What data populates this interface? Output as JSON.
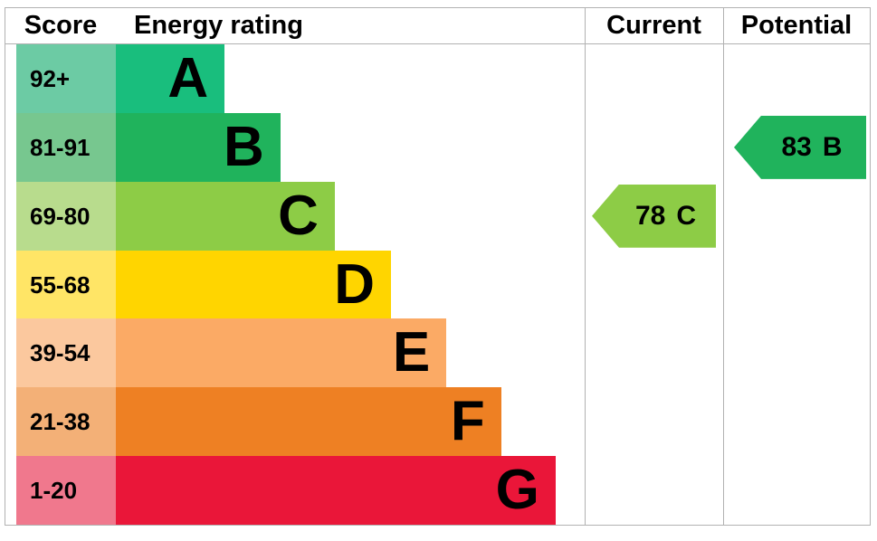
{
  "header": {
    "score": "Score",
    "energy_rating": "Energy rating",
    "current": "Current",
    "potential": "Potential"
  },
  "chart_data": {
    "type": "bar",
    "title": "EPC energy efficiency rating chart",
    "bands": [
      {
        "letter": "A",
        "score": "92+",
        "color": "#19BE7D",
        "tint": "#6CCBA4",
        "width_pct": 23.2
      },
      {
        "letter": "B",
        "score": "81-91",
        "color": "#20B35C",
        "tint": "#77C78F",
        "width_pct": 35.1
      },
      {
        "letter": "C",
        "score": "69-80",
        "color": "#8DCC46",
        "tint": "#B8DC8D",
        "width_pct": 46.7
      },
      {
        "letter": "D",
        "score": "55-68",
        "color": "#FFD500",
        "tint": "#FFE566",
        "width_pct": 58.7
      },
      {
        "letter": "E",
        "score": "39-54",
        "color": "#FBAA65",
        "tint": "#FBC89E",
        "width_pct": 70.5
      },
      {
        "letter": "F",
        "score": "21-38",
        "color": "#EE8023",
        "tint": "#F3B077",
        "width_pct": 82.2
      },
      {
        "letter": "G",
        "score": "1-20",
        "color": "#EA1639",
        "tint": "#F0788D",
        "width_pct": 93.8
      }
    ],
    "current": {
      "value": "78",
      "band": "C",
      "band_index": 2,
      "color": "#8DCC46"
    },
    "potential": {
      "value": "83",
      "band": "B",
      "band_index": 1,
      "color": "#20B35C"
    }
  },
  "style": {
    "border_color": "#b2b2b2",
    "text_color": "#000000",
    "background": "#ffffff"
  }
}
